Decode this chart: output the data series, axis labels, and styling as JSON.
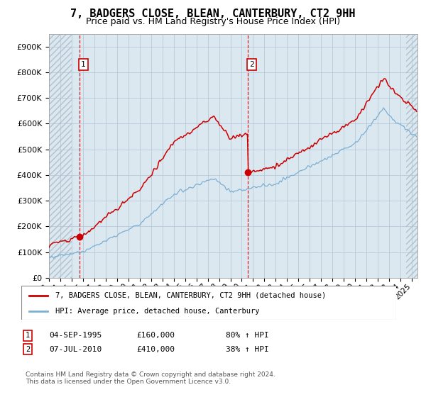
{
  "title": "7, BADGERS CLOSE, BLEAN, CANTERBURY, CT2 9HH",
  "subtitle": "Price paid vs. HM Land Registry's House Price Index (HPI)",
  "legend_label1": "7, BADGERS CLOSE, BLEAN, CANTERBURY, CT2 9HH (detached house)",
  "legend_label2": "HPI: Average price, detached house, Canterbury",
  "footnote": "Contains HM Land Registry data © Crown copyright and database right 2024.\nThis data is licensed under the Open Government Licence v3.0.",
  "sale1_date": "04-SEP-1995",
  "sale1_price": 160000,
  "sale1_label": "£160,000",
  "sale1_pct": "80% ↑ HPI",
  "sale2_date": "07-JUL-2010",
  "sale2_price": 410000,
  "sale2_label": "£410,000",
  "sale2_pct": "38% ↑ HPI",
  "sale1_x": 1995.67,
  "sale2_x": 2010.52,
  "ylim": [
    0,
    950000
  ],
  "yticks": [
    0,
    100000,
    200000,
    300000,
    400000,
    500000,
    600000,
    700000,
    800000,
    900000
  ],
  "plot_bg": "#dce8f0",
  "red_line_color": "#cc0000",
  "blue_line_color": "#7bafd4",
  "dot_color": "#cc0000",
  "vline_color": "#cc0000",
  "grid_color": "#b0c4d8",
  "hatch_color": "#b0c0cc",
  "title_fontsize": 11,
  "subtitle_fontsize": 9,
  "tick_fontsize": 8,
  "legend_fontsize": 8
}
